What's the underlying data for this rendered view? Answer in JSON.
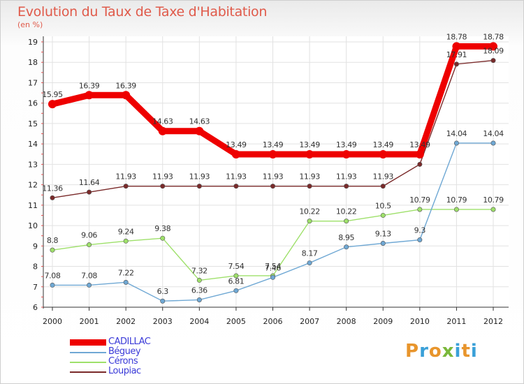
{
  "header": {
    "title": "Evolution du Taux de Taxe d'Habitation",
    "subtitle": "(en %)"
  },
  "logo": {
    "text": "Proxiti",
    "colors": [
      "#e8952c",
      "#3aa0d8",
      "#e8952c",
      "#7ab83a",
      "#3aa0d8",
      "#e8952c",
      "#3aa0d8"
    ]
  },
  "chart_data": {
    "type": "line",
    "x": [
      "2000",
      "2001",
      "2002",
      "2003",
      "2004",
      "2005",
      "2006",
      "2007",
      "2008",
      "2009",
      "2010",
      "2011",
      "2012"
    ],
    "ylim": [
      6,
      19
    ],
    "yticks": [
      "6",
      "7",
      "8",
      "9",
      "10",
      "11",
      "12",
      "13",
      "14",
      "15",
      "16",
      "17",
      "18",
      "19"
    ],
    "grid": true,
    "legend_position": "bottom-left",
    "series": [
      {
        "name": "CADILLAC",
        "color": "#ee0000",
        "values": [
          15.95,
          16.39,
          16.39,
          14.63,
          14.63,
          13.49,
          13.49,
          13.49,
          13.49,
          13.49,
          13.49,
          18.78,
          18.78
        ],
        "labels": [
          "15.95",
          "16.39",
          "16.39",
          "14.63",
          "14.63",
          "13.49",
          "13.49",
          "13.49",
          "13.49",
          "13.49",
          "13.49",
          "18.78",
          "18.78"
        ]
      },
      {
        "name": "Béguey",
        "color": "#6fa8d4",
        "values": [
          7.08,
          7.08,
          7.22,
          6.3,
          6.36,
          6.81,
          7.46,
          8.17,
          8.95,
          9.13,
          9.3,
          14.04,
          14.04
        ],
        "labels": [
          "7.08",
          "7.08",
          "7.22",
          "6.3",
          "6.36",
          "6.81",
          "7.46",
          "8.17",
          "8.95",
          "9.13",
          "9.3",
          "14.04",
          "14.04"
        ]
      },
      {
        "name": "Cérons",
        "color": "#9ee06a",
        "values": [
          8.8,
          9.06,
          9.24,
          9.38,
          7.32,
          7.54,
          7.54,
          10.22,
          10.22,
          10.5,
          10.79,
          10.79,
          10.79
        ],
        "labels": [
          "8.8",
          "9.06",
          "9.24",
          "9.38",
          "7.32",
          "7.54",
          "7.54",
          "10.22",
          "10.22",
          "10.5",
          "10.79",
          "10.79",
          "10.79"
        ]
      },
      {
        "name": "Loupiac",
        "color": "#7a2a2a",
        "values": [
          11.36,
          11.64,
          11.93,
          11.93,
          11.93,
          11.93,
          11.93,
          11.93,
          11.93,
          11.93,
          13.0,
          17.91,
          18.09
        ],
        "labels": [
          "11.36",
          "11.64",
          "11.93",
          "11.93",
          "11.93",
          "11.93",
          "11.93",
          "11.93",
          "11.93",
          "11.93",
          "",
          "17.91",
          "18.09"
        ]
      }
    ]
  }
}
